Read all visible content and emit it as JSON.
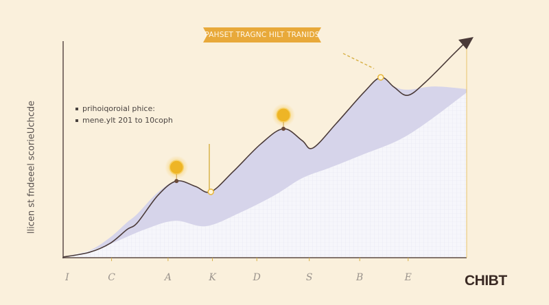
{
  "chart_data": {
    "type": "area",
    "title": "PAHSET TRAGNC HILT TRANIDS",
    "ylabel": "llicen st fndeeel scorieUchcde",
    "xlabel": "",
    "legend": [
      "prihoiqoroial phice:",
      "mene.ylt 201 to 10coph"
    ],
    "legend_placement": "top-left",
    "xlim": [
      0,
      10
    ],
    "ylim": [
      0,
      100
    ],
    "grid": false,
    "x_ticks": [
      {
        "x": 0.1,
        "label": "I"
      },
      {
        "x": 1.2,
        "label": "C"
      },
      {
        "x": 2.6,
        "label": "A"
      },
      {
        "x": 3.7,
        "label": "K"
      },
      {
        "x": 4.8,
        "label": "D"
      },
      {
        "x": 6.1,
        "label": "S"
      },
      {
        "x": 7.35,
        "label": "B"
      },
      {
        "x": 8.55,
        "label": "E"
      }
    ],
    "series": [
      {
        "kind": "line",
        "x": [
          0,
          0.65,
          1.16,
          1.58,
          1.84,
          2.35,
          2.81,
          3.28,
          3.66,
          4.22,
          4.9,
          5.46,
          5.92,
          6.19,
          6.77,
          7.45,
          7.87,
          8.2,
          8.54,
          8.98,
          9.66,
          10
        ],
        "y": [
          0,
          2.2,
          6.3,
          12.7,
          15.9,
          28.6,
          35.2,
          32.7,
          30.2,
          39.7,
          52.4,
          59.4,
          54,
          50.5,
          61.9,
          76.2,
          83.2,
          78.7,
          74.9,
          81,
          93.7,
          100
        ]
      },
      {
        "kind": "upper-band",
        "x": [
          0,
          0.65,
          1.16,
          1.58,
          1.84,
          2.35,
          2.81,
          3.28,
          3.66,
          4.22,
          4.9,
          5.46,
          5.92,
          6.19,
          6.77,
          7.45,
          7.87,
          8.2,
          8.54,
          9.2,
          10
        ],
        "y": [
          0,
          3,
          9,
          16,
          20,
          30,
          35.2,
          32.7,
          30.2,
          39.7,
          52.4,
          59.4,
          54,
          50.5,
          61.9,
          76.2,
          83.2,
          79,
          77.5,
          79,
          77.8
        ]
      },
      {
        "kind": "lower-band",
        "x": [
          0,
          0.99,
          2.01,
          2.77,
          3.54,
          4.39,
          5.24,
          5.92,
          6.6,
          7.45,
          8.3,
          8.98,
          10
        ],
        "y": [
          0,
          4.8,
          12.7,
          16.8,
          14.3,
          20.6,
          28.6,
          36.5,
          41.3,
          47.6,
          54,
          61.9,
          76.2
        ]
      }
    ],
    "markers": [
      {
        "x": 2.81,
        "y": 35.2,
        "style": "coin"
      },
      {
        "x": 3.66,
        "y": 30.2,
        "style": "ring"
      },
      {
        "x": 5.46,
        "y": 59.4,
        "style": "coin"
      },
      {
        "x": 7.87,
        "y": 83.2,
        "style": "ring"
      }
    ],
    "colors": {
      "background": "#faf0dc",
      "line": "#4a3a38",
      "upper_band": "#d6d4ea",
      "lower_band": "#f6f6fb",
      "accent": "#e8a93a",
      "axis": "#5a4a46"
    },
    "logo": "CHIBT"
  }
}
